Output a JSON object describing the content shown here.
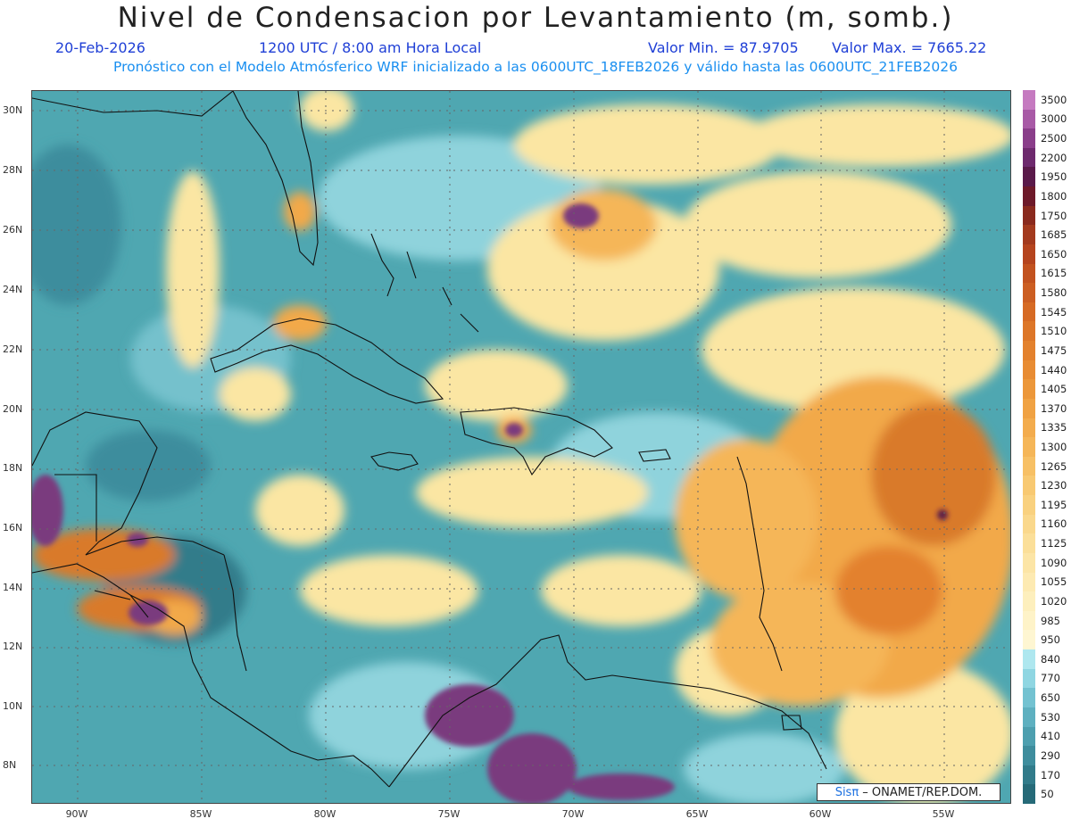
{
  "header": {
    "title": "Nivel de Condensacion por Levantamiento (m, somb.)",
    "date": "20-Feb-2026",
    "time": "1200 UTC / 8:00 am Hora Local",
    "vmin": "Valor Min. = 87.9705",
    "vmax": "Valor Max. = 7665.22",
    "forecast_note": "Pronóstico con el Modelo Atmósferico WRF inicializado a las 0600UTC_18FEB2026 y válido hasta las  0600UTC_21FEB2026"
  },
  "map": {
    "lat_labels": [
      "30N",
      "28N",
      "26N",
      "24N",
      "22N",
      "20N",
      "18N",
      "16N",
      "14N",
      "12N",
      "10N",
      "8N"
    ],
    "lon_labels": [
      "90W",
      "85W",
      "80W",
      "75W",
      "70W",
      "65W",
      "60W",
      "55W"
    ],
    "credit_brand": "Sisπ",
    "credit_text": " – ONAMET/REP.DOM."
  },
  "colorbar": {
    "levels": [
      "3500",
      "3000",
      "2500",
      "2200",
      "1950",
      "1800",
      "1750",
      "1685",
      "1650",
      "1615",
      "1580",
      "1545",
      "1510",
      "1475",
      "1440",
      "1405",
      "1370",
      "1335",
      "1300",
      "1265",
      "1230",
      "1195",
      "1160",
      "1125",
      "1090",
      "1055",
      "1020",
      "985",
      "950",
      "840",
      "770",
      "650",
      "530",
      "410",
      "290",
      "170",
      "50"
    ],
    "colors": [
      "#c57ac0",
      "#a85aa6",
      "#8a3e8a",
      "#6e2a6e",
      "#5a1a4a",
      "#6e1a2a",
      "#8a2a1e",
      "#a33a1e",
      "#b5441e",
      "#c2521f",
      "#cc5e22",
      "#d66a24",
      "#dd7628",
      "#e3812d",
      "#e88c33",
      "#ec973a",
      "#f0a243",
      "#f3ac4d",
      "#f5b658",
      "#f7c065",
      "#f8c972",
      "#f9d17f",
      "#fad88c",
      "#fbdf99",
      "#fce5a6",
      "#fdeab2",
      "#fdefbd",
      "#fef3c8",
      "#fef6d2",
      "#aee7ef",
      "#8fd6e2",
      "#73c2d1",
      "#5eb0c0",
      "#4d9faf",
      "#3e8d9d",
      "#317b8a",
      "#266a78"
    ]
  },
  "colors": {
    "sea_teal": "#4fa7b1",
    "light_cyan": "#8fd3dc",
    "yellow": "#fbe6a3",
    "orange": "#f2a94a",
    "dark_orange": "#d97a2c",
    "purple": "#7a3a7e",
    "coast": "#111111"
  }
}
